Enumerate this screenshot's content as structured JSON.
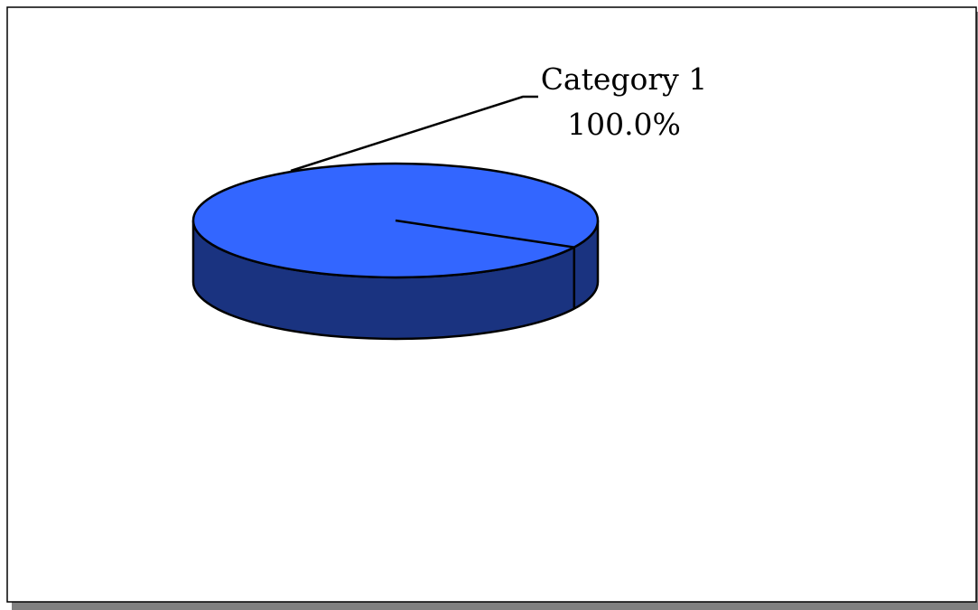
{
  "chart_data": {
    "type": "pie",
    "title": "",
    "style": "3d",
    "categories": [
      "Category 1"
    ],
    "values": [
      100.0
    ],
    "data_labels": [
      {
        "category": "Category 1",
        "percent": "100.0%"
      }
    ],
    "legend": "none",
    "colors": {
      "slice_top": "#3366FF",
      "slice_side": "#1A3380",
      "outline": "#000000",
      "frame_shadow": "#808080"
    }
  }
}
